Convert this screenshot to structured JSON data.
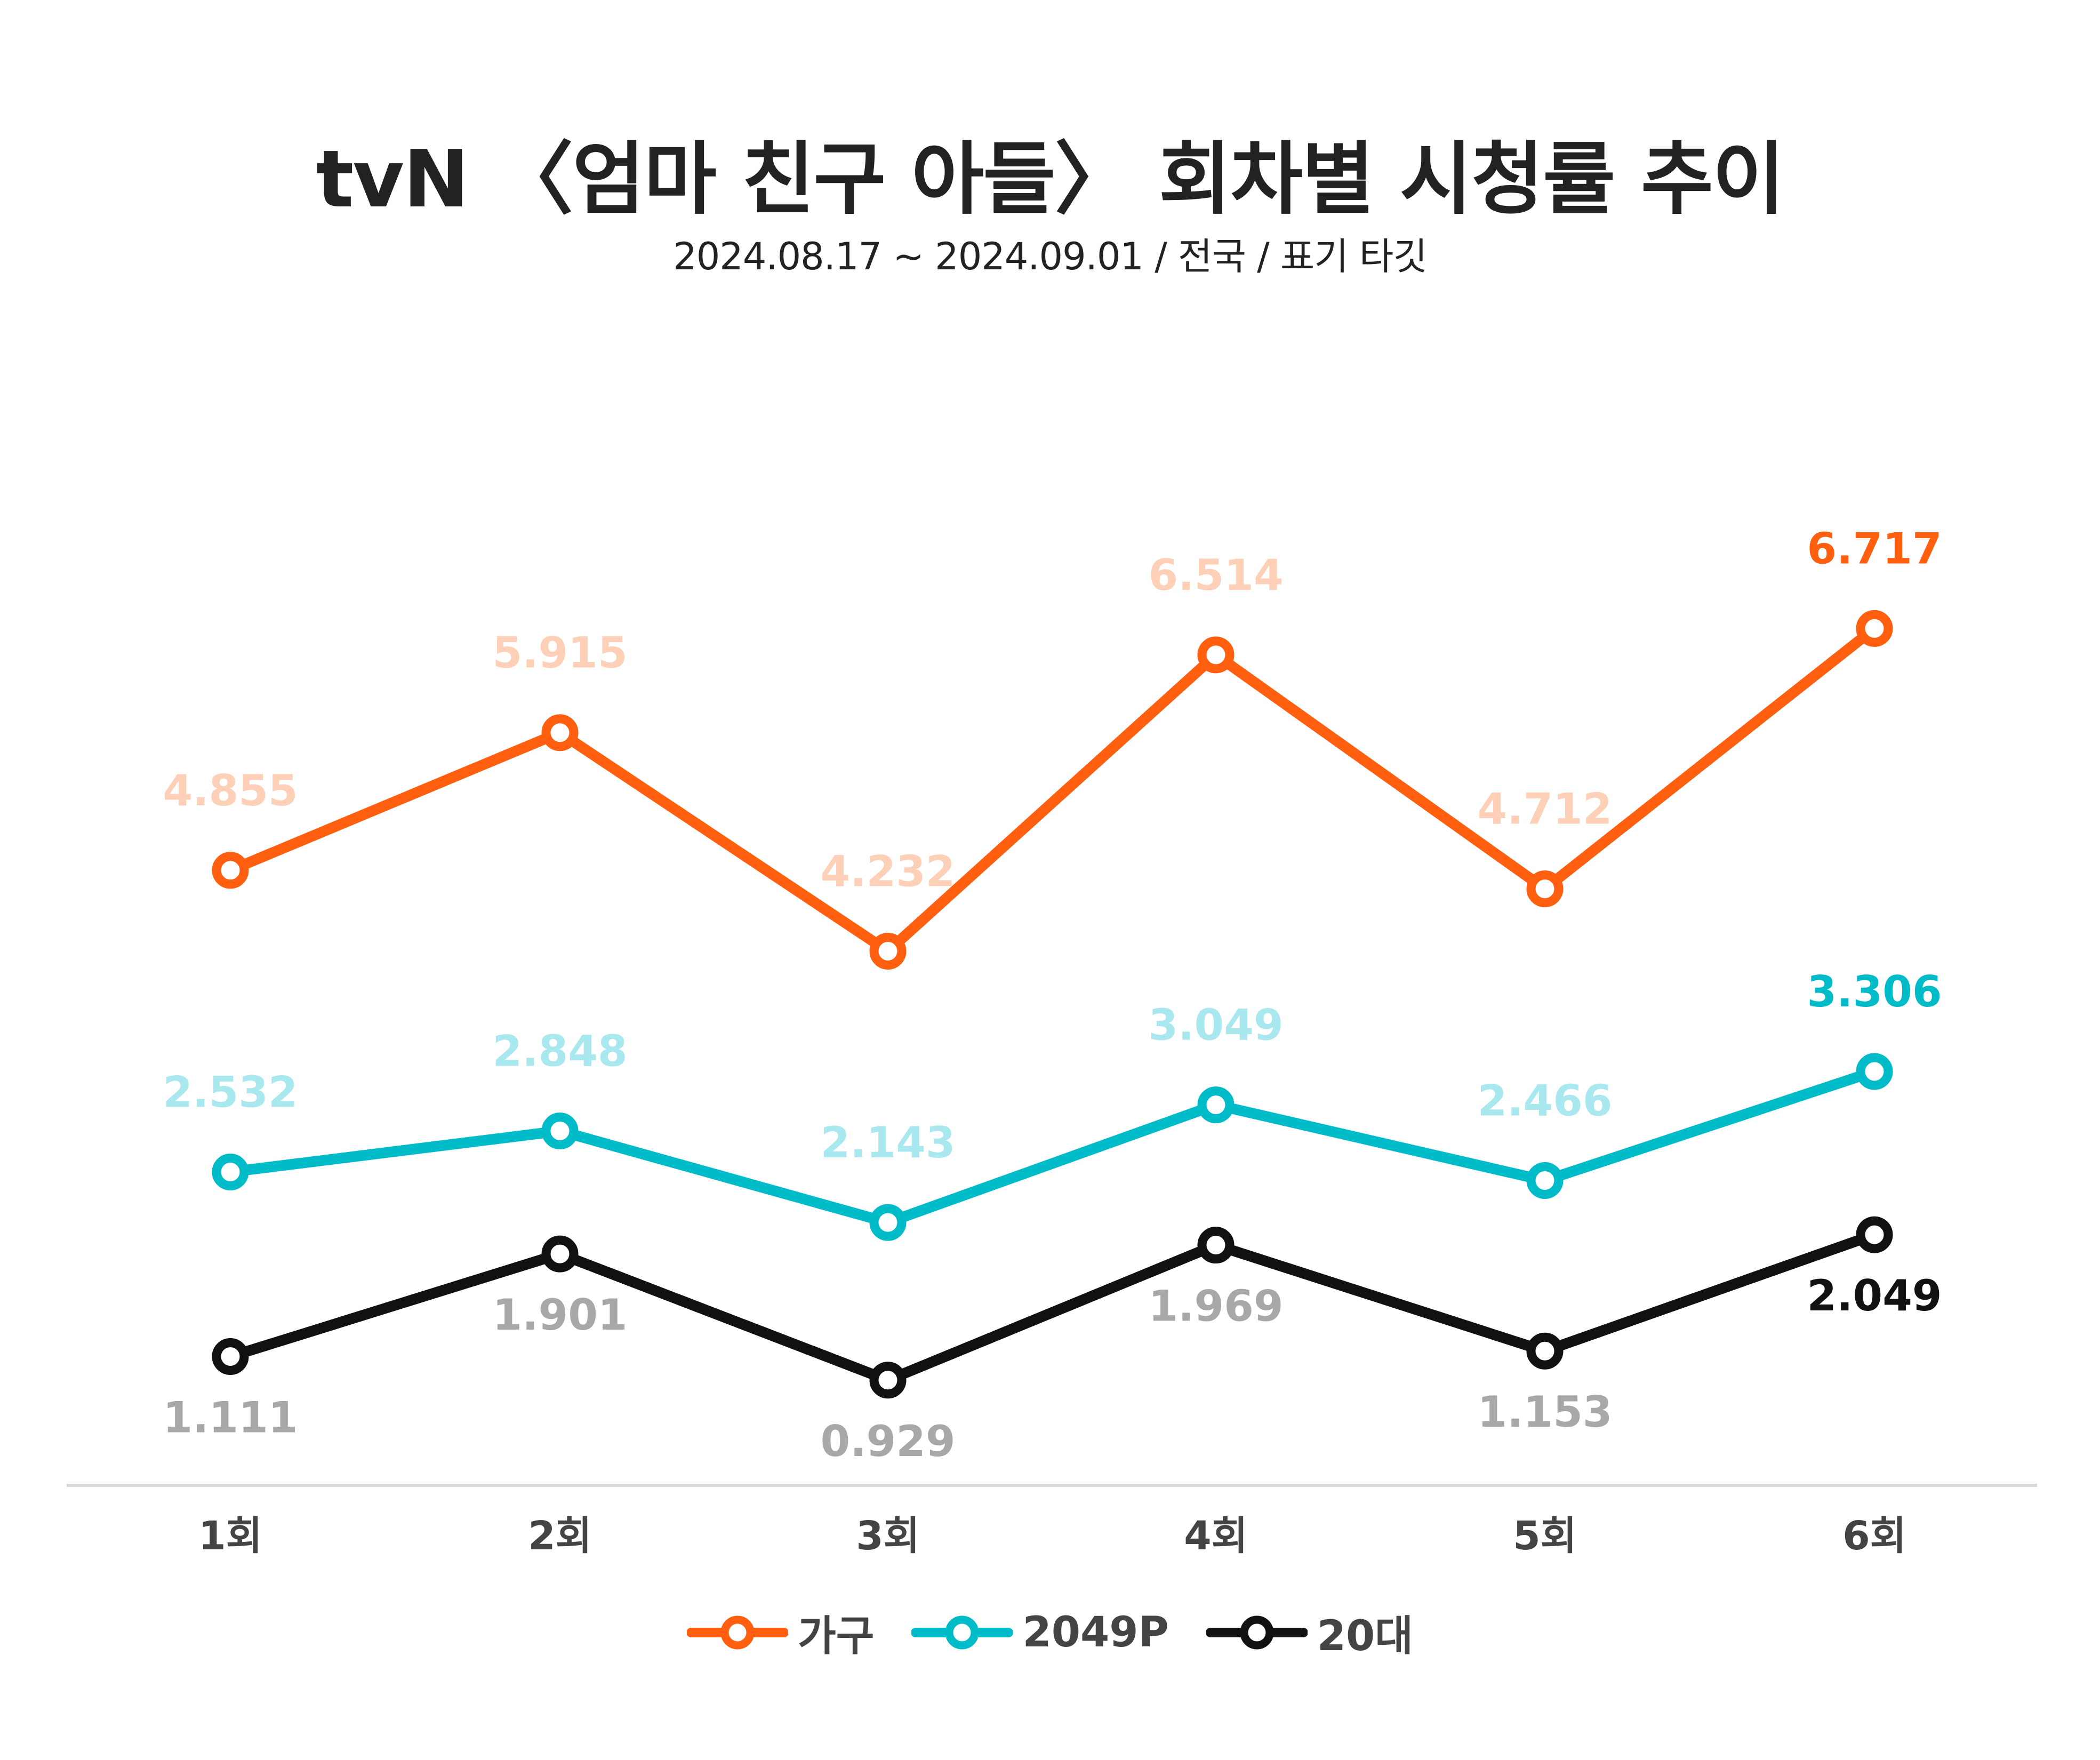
{
  "title": "tvN 〈엄마 친구 아들〉 회차별 시청률 추이",
  "subtitle": "2024.08.17 ~ 2024.09.01 / 전국 / 표기 타깃",
  "chart_data": {
    "type": "line",
    "categories": [
      "1회",
      "2회",
      "3회",
      "4회",
      "5회",
      "6회"
    ],
    "series": [
      {
        "name": "가구",
        "color": "#FF5F0F",
        "label_color": "#FFD0B8",
        "highlight_color": "#FF5F0F",
        "label_position": "above",
        "values": [
          4.855,
          5.915,
          4.232,
          6.514,
          4.712,
          6.717
        ]
      },
      {
        "name": "2049P",
        "color": "#00BCC9",
        "label_color": "#A8E8EE",
        "highlight_color": "#00BCC9",
        "label_position": "above",
        "values": [
          2.532,
          2.848,
          2.143,
          3.049,
          2.466,
          3.306
        ]
      },
      {
        "name": "20대",
        "color": "#111111",
        "label_color": "#A8A8A8",
        "highlight_color": "#111111",
        "label_position": "below",
        "values": [
          1.111,
          1.901,
          0.929,
          1.969,
          1.153,
          2.049
        ]
      }
    ],
    "value_labels": [
      [
        "4.855",
        "5.915",
        "4.232",
        "6.514",
        "4.712",
        "6.717"
      ],
      [
        "2.532",
        "2.848",
        "2.143",
        "3.049",
        "2.466",
        "3.306"
      ],
      [
        "1.111",
        "1.901",
        "0.929",
        "1.969",
        "1.153",
        "2.049"
      ]
    ],
    "highlight_last": true,
    "legend_position": "bottom-center",
    "grid": false
  }
}
